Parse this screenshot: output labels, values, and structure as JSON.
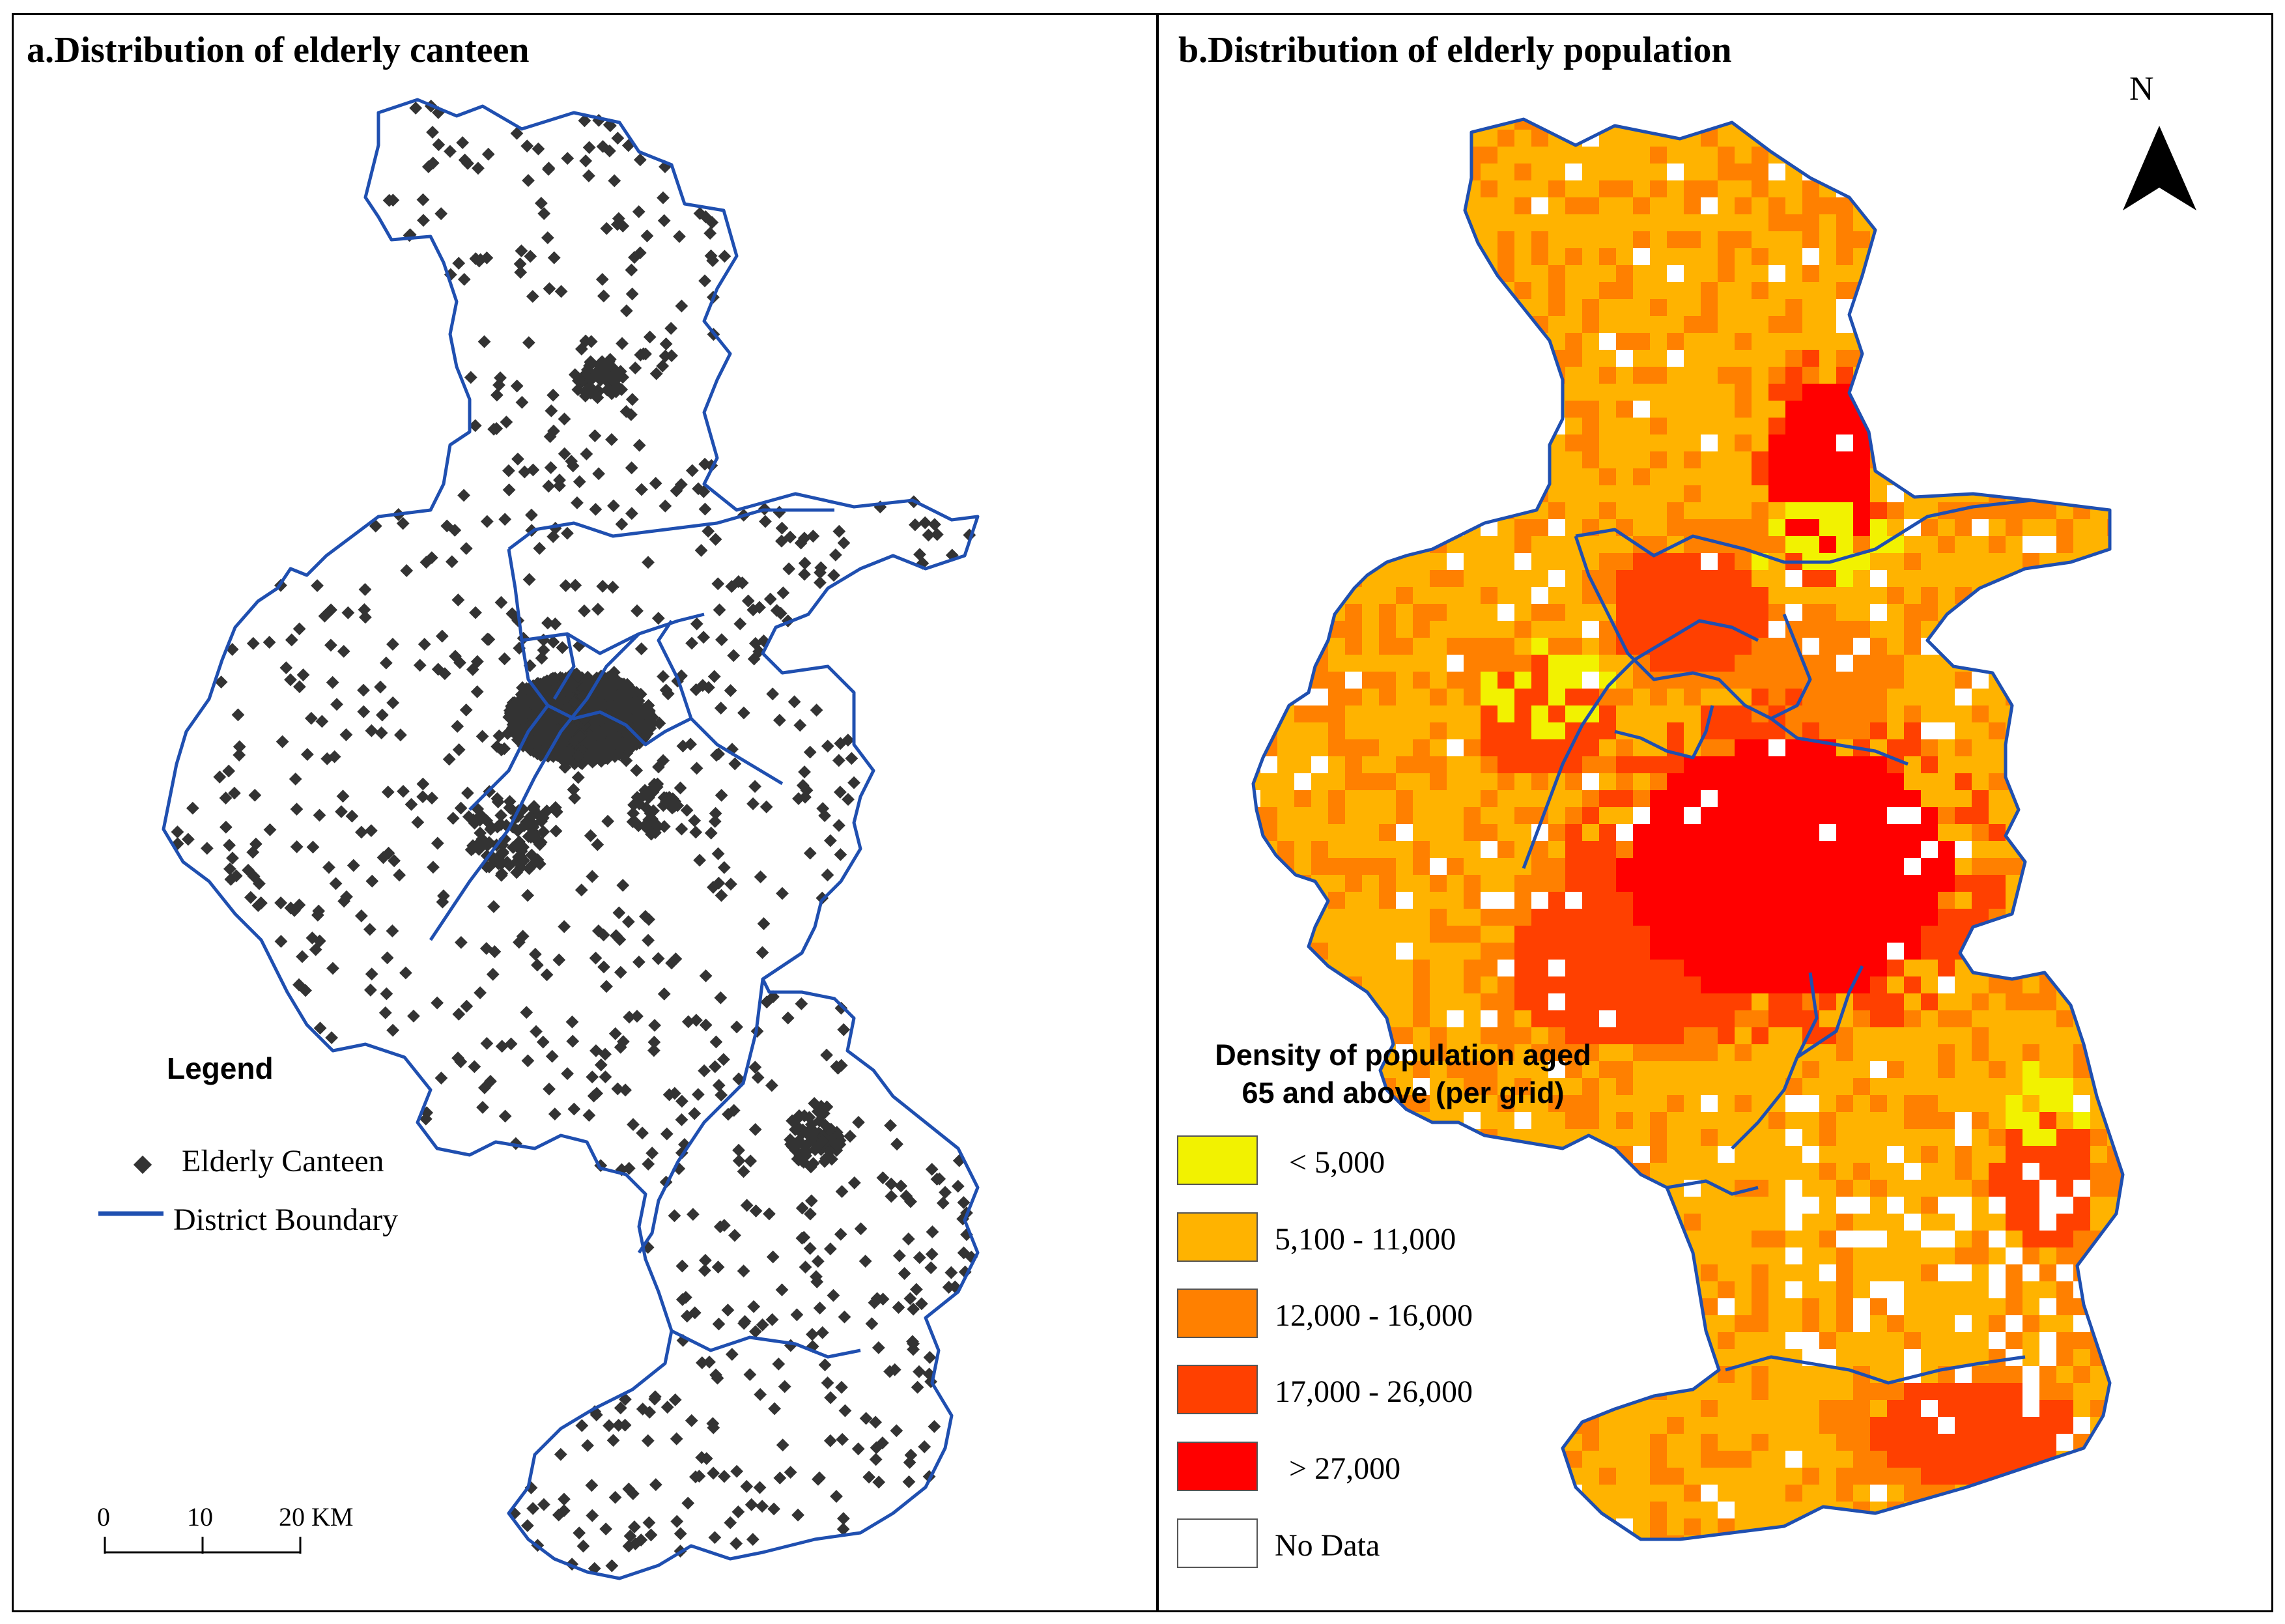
{
  "panel_a": {
    "title": "a.Distribution of elderly canteen",
    "legend": {
      "title": "Legend",
      "items": [
        {
          "label": "Elderly Canteen",
          "icon": "diamond-marker-icon",
          "color": "#333333"
        },
        {
          "label": "District Boundary",
          "icon": "blue-line-icon",
          "color": "#1f4fb0"
        }
      ]
    },
    "scale_bar": {
      "labels": [
        "0",
        "10",
        "20 KM"
      ]
    }
  },
  "panel_b": {
    "title": "b.Distribution of elderly population",
    "north_arrow": {
      "label": "N"
    },
    "legend": {
      "heading_line1": "Density of population aged",
      "heading_line2": "65 and above (per grid)",
      "classes": [
        {
          "label": "<  5,000",
          "color": "#f2f200"
        },
        {
          "label": "5,100 - 11,000",
          "color": "#ffb300"
        },
        {
          "label": "12,000 - 16,000",
          "color": "#ff8000"
        },
        {
          "label": "17,000 - 26,000",
          "color": "#ff4000"
        },
        {
          "label": ">  27,000",
          "color": "#ff0000"
        },
        {
          "label": "No Data",
          "color": "#ffffff"
        }
      ]
    }
  },
  "colors": {
    "boundary": "#1f4fb0",
    "canteen_marker": "#333333"
  }
}
